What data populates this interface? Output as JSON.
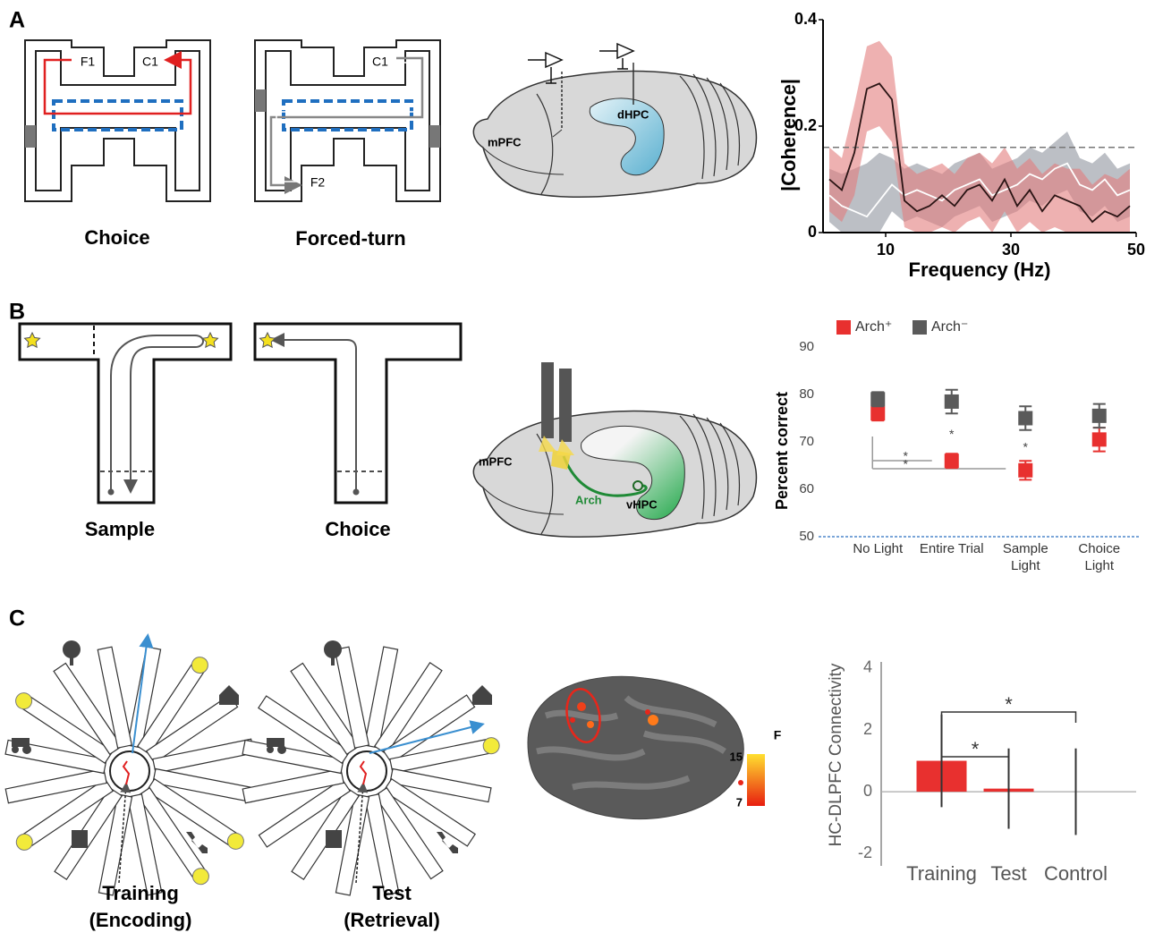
{
  "panels": {
    "A": {
      "label": "A",
      "maze_labels": [
        "F1",
        "C1",
        "C1",
        "F2"
      ],
      "captions": [
        "Choice",
        "Forced-turn"
      ],
      "brain_labels": [
        "mPFC",
        "dHPC"
      ]
    },
    "B": {
      "label": "B",
      "captions": [
        "Sample",
        "Choice"
      ],
      "brain_labels": [
        "mPFC",
        "Arch",
        "vHPC"
      ]
    },
    "C": {
      "label": "C",
      "captions": [
        [
          "Training",
          "(Encoding)"
        ],
        [
          "Test",
          "(Retrieval)"
        ]
      ],
      "colorbar": {
        "title": "F",
        "max": 15,
        "min": 7
      }
    }
  },
  "chart_data": [
    {
      "type": "line",
      "x_label": "Frequency (Hz)",
      "y_label": "|Coherence|",
      "x": [
        1,
        3,
        5,
        7,
        9,
        11,
        13,
        15,
        17,
        19,
        21,
        23,
        25,
        27,
        29,
        31,
        33,
        35,
        37,
        39,
        41,
        43,
        45,
        47,
        49
      ],
      "series": [
        {
          "color": "#ffffff",
          "band_color": "#8f959e",
          "values": [
            0.07,
            0.05,
            0.04,
            0.03,
            0.06,
            0.09,
            0.07,
            0.08,
            0.07,
            0.06,
            0.08,
            0.09,
            0.1,
            0.07,
            0.08,
            0.09,
            0.11,
            0.1,
            0.12,
            0.13,
            0.09,
            0.08,
            0.1,
            0.07,
            0.08
          ],
          "band": {
            "upper": [
              0.12,
              0.11,
              0.12,
              0.13,
              0.15,
              0.14,
              0.12,
              0.13,
              0.12,
              0.11,
              0.13,
              0.14,
              0.15,
              0.12,
              0.13,
              0.14,
              0.16,
              0.15,
              0.17,
              0.19,
              0.14,
              0.13,
              0.15,
              0.12,
              0.13
            ],
            "lower": [
              0.02,
              0,
              0,
              0,
              0,
              0.04,
              0.02,
              0.03,
              0.02,
              0.01,
              0.03,
              0.04,
              0.05,
              0.02,
              0.03,
              0.04,
              0.06,
              0.05,
              0.07,
              0.08,
              0.04,
              0.03,
              0.05,
              0.02,
              0.03
            ]
          }
        },
        {
          "color": "#2a1414",
          "band_color": "#e27d7d",
          "values": [
            0.1,
            0.08,
            0.15,
            0.27,
            0.28,
            0.25,
            0.06,
            0.04,
            0.05,
            0.07,
            0.05,
            0.08,
            0.09,
            0.06,
            0.1,
            0.05,
            0.08,
            0.04,
            0.07,
            0.06,
            0.05,
            0.02,
            0.04,
            0.03,
            0.05
          ],
          "band": {
            "upper": [
              0.16,
              0.14,
              0.24,
              0.35,
              0.36,
              0.33,
              0.13,
              0.11,
              0.12,
              0.13,
              0.11,
              0.14,
              0.15,
              0.13,
              0.16,
              0.12,
              0.14,
              0.11,
              0.13,
              0.12,
              0.12,
              0.09,
              0.11,
              0.1,
              0.12
            ],
            "lower": [
              0.04,
              0.02,
              0.07,
              0.19,
              0.2,
              0.17,
              0.01,
              0,
              0,
              0.01,
              0,
              0.02,
              0.03,
              0,
              0.04,
              0,
              0.02,
              0,
              0.01,
              0,
              0,
              0,
              0,
              0,
              0
            ]
          }
        }
      ],
      "threshold": 0.16,
      "xlim": [
        0,
        50
      ],
      "xticks": [
        10,
        30,
        50
      ],
      "ylim": [
        0,
        0.4
      ],
      "yticks": [
        0,
        0.2,
        0.4
      ]
    },
    {
      "type": "dot",
      "y_label": "Percent correct",
      "categories": [
        "No Light",
        "Entire Trial",
        "Sample Light",
        "Choice Light"
      ],
      "series": [
        {
          "name": "Arch⁺",
          "color": "#e8302f",
          "values": [
            76,
            66,
            64,
            70.5
          ],
          "errors": [
            1.5,
            1.5,
            2,
            2.5
          ]
        },
        {
          "name": "Arch⁻",
          "color": "#5a5a5a",
          "values": [
            79,
            78.5,
            75,
            75.5
          ],
          "errors": [
            1.5,
            2.5,
            2.5,
            2.5
          ]
        }
      ],
      "stars": [
        {
          "category": 1,
          "label": "*"
        },
        {
          "category": 2,
          "label": "*"
        }
      ],
      "significance": [
        {
          "from": 0,
          "to": 1,
          "label": "*"
        },
        {
          "from": 0,
          "to": 2,
          "label": "*"
        }
      ],
      "ylim": [
        50,
        90
      ],
      "yticks": [
        50,
        60,
        70,
        80,
        90
      ],
      "legend": "top-left"
    },
    {
      "type": "bar",
      "y_label": "HC-DLPFC Connectivity",
      "categories": [
        "Training",
        "Test",
        "Control"
      ],
      "values": [
        1,
        0.1,
        0
      ],
      "errors": [
        1.5,
        1.3,
        1.4
      ],
      "color": "#e8302f",
      "significance": [
        {
          "from": 0,
          "to": 1,
          "label": "*"
        },
        {
          "from": 0,
          "to": 2,
          "label": "*"
        }
      ],
      "ylim": [
        -2.4,
        4.2
      ],
      "yticks": [
        -2,
        0,
        2,
        4
      ]
    }
  ]
}
